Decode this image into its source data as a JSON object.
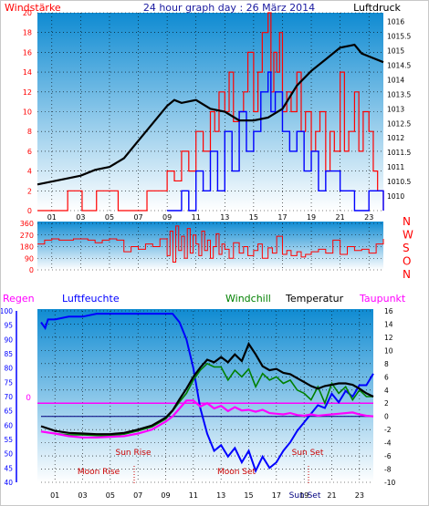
{
  "header": {
    "title": "24 hour graph day : 26 März 2014",
    "left_label": "Windstärke",
    "right_label": "Luftdruck"
  },
  "chart_data": [
    {
      "type": "line",
      "title": "24 hour graph day : 26 März 2014",
      "x_ticks": [
        "01",
        "03",
        "05",
        "07",
        "09",
        "11",
        "13",
        "15",
        "17",
        "19",
        "21",
        "23"
      ],
      "series": [
        {
          "name": "Windstärke",
          "axis": "left",
          "ylim": [
            0,
            20
          ],
          "y_ticks": [
            "0",
            "2",
            "4",
            "6",
            "8",
            "10",
            "12",
            "14",
            "16",
            "18",
            "20"
          ],
          "x": [
            0,
            2,
            2.1,
            3,
            3.1,
            4,
            4.1,
            5.5,
            5.6,
            7.5,
            7.6,
            8.5,
            9,
            9.5,
            10,
            10.5,
            11,
            11.5,
            12,
            12.3,
            12.6,
            13,
            13.3,
            13.6,
            14,
            14.3,
            14.6,
            15,
            15.3,
            15.6,
            16,
            16.2,
            16.4,
            16.6,
            16.8,
            17,
            17.3,
            17.6,
            18,
            18.3,
            18.6,
            19,
            19.3,
            19.6,
            20,
            20.3,
            20.6,
            21,
            21.3,
            21.6,
            22,
            22.3,
            22.6,
            23,
            23.3,
            23.6,
            24
          ],
          "y": [
            0,
            0,
            2,
            2,
            0,
            0,
            2,
            2,
            0,
            0,
            2,
            2,
            4,
            3,
            6,
            4,
            8,
            6,
            10,
            8,
            12,
            10,
            14,
            9,
            10,
            12,
            16,
            10,
            14,
            18,
            20,
            12,
            16,
            14,
            18,
            10,
            12,
            10,
            14,
            8,
            10,
            6,
            8,
            10,
            4,
            8,
            6,
            14,
            6,
            8,
            12,
            6,
            10,
            8,
            4,
            2,
            0
          ]
        },
        {
          "name": "Windböen",
          "axis": "left",
          "x": [
            9,
            10,
            10.5,
            11,
            11.5,
            12,
            12.5,
            13,
            13.5,
            14,
            14.5,
            15,
            15.5,
            16,
            16.2,
            16.5,
            17,
            17.5,
            18,
            18.5,
            19,
            19.5,
            20,
            21,
            22,
            23,
            24
          ],
          "y": [
            0,
            2,
            0,
            4,
            2,
            6,
            2,
            8,
            4,
            10,
            6,
            8,
            12,
            14,
            10,
            12,
            8,
            6,
            8,
            4,
            6,
            2,
            4,
            2,
            0,
            2,
            0
          ]
        },
        {
          "name": "Luftdruck",
          "axis": "right",
          "ylim": [
            1009.5,
            1016.3
          ],
          "y_ticks": [
            "1010",
            "1010.5",
            "1011",
            "1011.5",
            "1012",
            "1012.5",
            "1013",
            "1013.5",
            "1014",
            "1014.5",
            "1015",
            "1015.5",
            "1016"
          ],
          "x": [
            0,
            2,
            3,
            4,
            5,
            6,
            7,
            8,
            9,
            9.5,
            10,
            11,
            12,
            13,
            14,
            15,
            16,
            17,
            18,
            19,
            20,
            21,
            22,
            22.5,
            23,
            24
          ],
          "y": [
            1010.4,
            1010.6,
            1010.7,
            1010.9,
            1011.0,
            1011.3,
            1011.9,
            1012.5,
            1013.1,
            1013.3,
            1013.2,
            1013.3,
            1013.0,
            1012.9,
            1012.6,
            1012.6,
            1012.7,
            1013.0,
            1013.8,
            1014.3,
            1014.7,
            1015.1,
            1015.2,
            1014.9,
            1014.8,
            1014.6
          ]
        }
      ]
    },
    {
      "type": "line",
      "y_ticks": [
        "0",
        "90",
        "180",
        "270",
        "360"
      ],
      "ylim": [
        0,
        360
      ],
      "right_labels": [
        "N",
        "W",
        "S",
        "O",
        "N"
      ],
      "series": [
        {
          "name": "Windrichtung",
          "x": [
            0,
            0.5,
            1,
            1.5,
            2,
            2.5,
            3,
            3.5,
            4,
            4.5,
            5,
            5.5,
            6,
            6.5,
            7,
            7.5,
            8,
            8.5,
            9,
            9.2,
            9.4,
            9.6,
            9.8,
            10,
            10.2,
            10.4,
            10.6,
            10.8,
            11,
            11.2,
            11.4,
            11.6,
            11.8,
            12,
            12.2,
            12.4,
            12.6,
            12.8,
            13,
            13.3,
            13.6,
            14,
            14.3,
            14.6,
            15,
            15.3,
            15.6,
            16,
            16.3,
            16.6,
            17,
            17.3,
            17.6,
            18,
            18.3,
            18.6,
            19,
            19.5,
            20,
            20.5,
            21,
            21.5,
            22,
            22.5,
            23,
            23.5,
            24
          ],
          "y": [
            200,
            230,
            240,
            230,
            230,
            240,
            240,
            230,
            210,
            230,
            240,
            230,
            140,
            180,
            160,
            200,
            180,
            240,
            110,
            300,
            60,
            340,
            150,
            260,
            90,
            320,
            130,
            270,
            200,
            110,
            300,
            150,
            230,
            90,
            180,
            280,
            120,
            200,
            160,
            90,
            210,
            130,
            180,
            110,
            150,
            200,
            90,
            170,
            130,
            260,
            120,
            150,
            110,
            140,
            100,
            120,
            140,
            160,
            130,
            230,
            120,
            180,
            150,
            160,
            130,
            200,
            240
          ]
        }
      ]
    },
    {
      "type": "line",
      "left_axis_label": "Regen",
      "legend": [
        "Luftfeuchte",
        "Windchill",
        "Temperatur",
        "Taupunkt"
      ],
      "left_ticks": [
        "40",
        "45",
        "50",
        "55",
        "60",
        "65",
        "70",
        "75",
        "80",
        "85",
        "90",
        "95",
        "100"
      ],
      "right_ticks": [
        "-10",
        "-8",
        "-6",
        "-4",
        "-2",
        "0",
        "2",
        "4",
        "6",
        "8",
        "10",
        "12",
        "14",
        "16"
      ],
      "rain_zero_label": "0",
      "ylim_left": [
        40,
        100
      ],
      "ylim_right": [
        -10,
        16
      ],
      "annotations": [
        "Sun Rise",
        "Moon Rise",
        "Moon Set",
        "Sun Set"
      ],
      "series": [
        {
          "name": "Luftfeuchte",
          "axis": "left",
          "x": [
            0,
            0.3,
            0.5,
            1,
            2,
            3,
            4,
            5,
            6,
            7,
            8,
            9,
            9.5,
            10,
            10.5,
            11,
            11.5,
            12,
            12.5,
            13,
            13.5,
            14,
            14.5,
            15,
            15.5,
            16,
            16.5,
            17,
            17.5,
            18,
            18.5,
            19,
            19.5,
            20,
            20.5,
            21,
            21.5,
            22,
            22.5,
            23,
            23.5,
            24
          ],
          "y": [
            96,
            94,
            97,
            97,
            98,
            98,
            99,
            99,
            99,
            99,
            99,
            99,
            99,
            96,
            90,
            80,
            66,
            57,
            51,
            53,
            49,
            52,
            47,
            51,
            44,
            49,
            45,
            47,
            51,
            54,
            58,
            61,
            64,
            67,
            66,
            71,
            68,
            72,
            70,
            74,
            74,
            78
          ]
        },
        {
          "name": "Windchill",
          "axis": "right",
          "x": [
            0,
            1,
            2,
            3,
            4,
            5,
            6,
            7,
            8,
            9,
            9.5,
            10,
            10.5,
            11,
            11.5,
            12,
            12.5,
            13,
            13.5,
            14,
            14.5,
            15,
            15.5,
            16,
            16.5,
            17,
            17.5,
            18,
            18.5,
            19,
            19.5,
            20,
            20.5,
            21,
            21.5,
            22,
            22.5,
            23,
            23.5,
            24
          ],
          "y": [
            -2.3,
            -2.6,
            -2.8,
            -2.8,
            -2.9,
            -2.9,
            -2.7,
            -2.2,
            -1.6,
            -0.4,
            0.8,
            2.2,
            3.5,
            5.5,
            7.0,
            8.0,
            7.5,
            7.5,
            5.5,
            7.0,
            6.0,
            7.2,
            4.5,
            6.5,
            5.5,
            6.0,
            5.0,
            5.5,
            4.0,
            3.5,
            2.5,
            4.5,
            2.0,
            5.0,
            3.5,
            4.5,
            2.5,
            4.0,
            3.0,
            3.0
          ]
        },
        {
          "name": "Temperatur",
          "axis": "right",
          "x": [
            0,
            1,
            2,
            3,
            4,
            5,
            6,
            7,
            8,
            9,
            9.5,
            10,
            10.5,
            11,
            11.5,
            12,
            12.5,
            13,
            13.5,
            14,
            14.5,
            15,
            15.5,
            16,
            16.5,
            17,
            17.5,
            18,
            18.5,
            19,
            19.5,
            20,
            20.5,
            21,
            21.5,
            22,
            22.5,
            23,
            23.5,
            24
          ],
          "y": [
            -1.5,
            -2.2,
            -2.5,
            -2.6,
            -2.7,
            -2.7,
            -2.5,
            -2.0,
            -1.4,
            -0.2,
            0.9,
            2.6,
            4.2,
            6.0,
            7.4,
            8.6,
            8.2,
            9.0,
            8.2,
            9.4,
            8.4,
            11.0,
            9.4,
            7.6,
            7.0,
            7.2,
            6.6,
            6.4,
            5.8,
            5.2,
            4.6,
            4.2,
            4.6,
            4.8,
            5.0,
            5.0,
            4.8,
            4.2,
            3.5,
            3.0
          ]
        },
        {
          "name": "Taupunkt",
          "axis": "right",
          "x": [
            0,
            1,
            2,
            3,
            4,
            5,
            6,
            7,
            8,
            9,
            9.5,
            10,
            10.5,
            11,
            11.5,
            12,
            12.5,
            13,
            13.5,
            14,
            14.5,
            15,
            15.5,
            16,
            16.5,
            17,
            17.5,
            18,
            18.5,
            19,
            19.5,
            20,
            20.5,
            21,
            21.5,
            22,
            22.5,
            23,
            23.5,
            24
          ],
          "y": [
            -2.3,
            -2.6,
            -3.0,
            -3.2,
            -3.2,
            -3.1,
            -3.0,
            -2.6,
            -2.0,
            -0.8,
            0,
            1.2,
            2.4,
            2.4,
            1.5,
            2.0,
            1.2,
            1.6,
            0.8,
            1.4,
            0.9,
            1.0,
            0.7,
            1.0,
            0.5,
            0.4,
            0.3,
            0.5,
            0.2,
            0.1,
            0.3,
            0.1,
            0.2,
            0.3,
            0.4,
            0.5,
            0.6,
            0.3,
            0.1,
            0.0
          ]
        },
        {
          "name": "Regen",
          "axis": "rain",
          "x": [
            0,
            24
          ],
          "y": [
            0,
            0
          ]
        }
      ]
    }
  ],
  "colors": {
    "bg_top": "#0f8bd2",
    "bg_bottom": "#ffffff",
    "wind": "#ff0000",
    "gust": "#0000ff",
    "pressure": "#000000",
    "humidity": "#0000ff",
    "windchill": "#008000",
    "temperature": "#000000",
    "dewpoint": "#ff00ff",
    "rain": "#ff00ff",
    "axis_left": "#ff0000",
    "axis_right_dir": "#ff0000",
    "event_text": "#cc0000"
  }
}
